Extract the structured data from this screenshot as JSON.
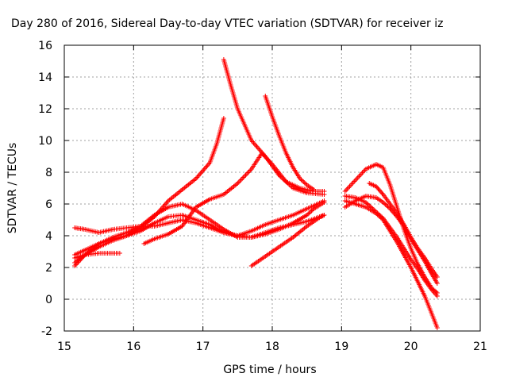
{
  "chart_data": {
    "type": "scatter",
    "title": "Day 280 of 2016, Sidereal Day-to-day VTEC variation (SDTVAR) for receiver iz",
    "xlabel": "GPS time / hours",
    "ylabel": "SDTVAR / TECUs",
    "xlim": [
      15,
      21
    ],
    "ylim": [
      -2,
      16
    ],
    "xticks": [
      15,
      16,
      17,
      18,
      19,
      20,
      21
    ],
    "yticks": [
      -2,
      0,
      2,
      4,
      6,
      8,
      10,
      12,
      14,
      16
    ],
    "grid": true,
    "marker": "+",
    "color": "#ff0000",
    "series": [
      {
        "x": [
          15.15,
          15.3,
          15.5,
          15.7,
          15.9,
          16.1,
          16.3,
          16.5,
          16.7,
          16.9,
          17.1,
          17.3,
          17.5,
          17.7,
          17.9,
          18.1,
          18.3,
          18.5,
          18.75
        ],
        "y": [
          4.5,
          4.4,
          4.2,
          4.4,
          4.5,
          4.6,
          4.6,
          4.8,
          5.0,
          4.8,
          4.5,
          4.2,
          4.0,
          4.3,
          4.7,
          5.0,
          5.3,
          5.7,
          6.2
        ]
      },
      {
        "x": [
          15.15,
          15.3,
          15.5,
          15.7,
          15.9,
          16.1,
          16.3,
          16.5,
          16.7,
          16.9,
          17.1,
          17.3,
          17.5,
          17.7,
          17.9,
          18.1,
          18.3,
          18.5,
          18.75
        ],
        "y": [
          2.3,
          2.8,
          3.5,
          3.8,
          4.0,
          4.3,
          4.8,
          5.2,
          5.3,
          5.0,
          4.7,
          4.2,
          4.0,
          3.9,
          4.2,
          4.5,
          4.7,
          4.9,
          5.3
        ]
      },
      {
        "x": [
          15.15,
          15.3,
          15.5,
          15.7,
          15.8
        ],
        "y": [
          2.6,
          2.8,
          2.9,
          2.9,
          2.9
        ]
      },
      {
        "x": [
          15.15,
          15.3,
          15.5,
          15.7,
          15.9,
          16.1,
          16.3,
          16.5,
          16.7,
          16.9,
          17.1,
          17.2,
          17.3
        ],
        "y": [
          2.1,
          2.8,
          3.3,
          3.7,
          4.0,
          4.5,
          5.2,
          6.2,
          6.9,
          7.6,
          8.6,
          9.8,
          11.4
        ]
      },
      {
        "x": [
          15.15,
          15.3,
          15.5,
          15.7,
          15.9,
          16.1,
          16.3,
          16.5,
          16.7,
          16.9,
          17.1,
          17.3,
          17.5,
          17.7,
          17.9,
          18.1,
          18.3,
          18.5,
          18.6,
          18.75
        ],
        "y": [
          2.8,
          3.1,
          3.5,
          3.9,
          4.2,
          4.6,
          5.3,
          5.8,
          6.0,
          5.6,
          5.0,
          4.4,
          3.9,
          3.9,
          4.1,
          4.4,
          4.8,
          5.3,
          5.7,
          6.1
        ]
      },
      {
        "x": [
          16.15,
          16.3,
          16.5,
          16.7,
          16.9,
          17.1,
          17.3,
          17.5,
          17.7,
          17.85,
          18.0,
          18.2,
          18.4,
          18.6,
          18.75
        ],
        "y": [
          3.5,
          3.8,
          4.1,
          4.6,
          5.8,
          6.3,
          6.6,
          7.3,
          8.2,
          9.2,
          8.5,
          7.4,
          7.0,
          6.8,
          6.8
        ]
      },
      {
        "x": [
          17.3,
          17.4,
          17.5,
          17.6,
          17.7,
          17.9,
          18.1,
          18.3,
          18.5,
          18.75
        ],
        "y": [
          15.1,
          13.5,
          12.0,
          11.0,
          10.0,
          9.0,
          7.8,
          7.0,
          6.7,
          6.6
        ]
      },
      {
        "x": [
          17.9,
          18.0,
          18.1,
          18.2,
          18.3,
          18.4,
          18.5,
          18.6
        ],
        "y": [
          12.8,
          11.5,
          10.3,
          9.2,
          8.3,
          7.6,
          7.2,
          6.9
        ]
      },
      {
        "x": [
          17.7,
          17.9,
          18.1,
          18.3,
          18.5,
          18.7,
          18.75
        ],
        "y": [
          2.1,
          2.7,
          3.3,
          3.9,
          4.6,
          5.2,
          5.3
        ]
      },
      {
        "x": [
          19.05,
          19.2,
          19.35,
          19.5,
          19.6,
          19.7,
          19.8,
          19.9,
          20.0,
          20.1,
          20.2,
          20.3,
          20.38
        ],
        "y": [
          6.8,
          7.5,
          8.2,
          8.5,
          8.3,
          7.2,
          5.8,
          4.4,
          3.2,
          2.2,
          1.4,
          0.7,
          0.4
        ]
      },
      {
        "x": [
          19.05,
          19.2,
          19.35,
          19.5,
          19.6,
          19.7,
          19.8,
          19.9,
          20.0,
          20.1,
          20.2,
          20.3,
          20.38
        ],
        "y": [
          6.2,
          6.0,
          5.8,
          5.4,
          5.0,
          4.3,
          3.6,
          2.8,
          2.0,
          1.1,
          0.2,
          -0.9,
          -1.8
        ]
      },
      {
        "x": [
          19.05,
          19.2,
          19.35,
          19.5,
          19.6,
          19.7,
          19.8,
          19.9,
          20.0,
          20.1,
          20.2,
          20.3,
          20.38
        ],
        "y": [
          5.8,
          6.2,
          6.5,
          6.4,
          6.1,
          5.7,
          5.2,
          4.6,
          3.8,
          3.1,
          2.4,
          1.6,
          1.0
        ]
      },
      {
        "x": [
          19.05,
          19.2,
          19.35,
          19.5,
          19.6,
          19.7,
          19.8,
          19.9,
          20.0,
          20.1,
          20.2,
          20.3,
          20.38
        ],
        "y": [
          6.5,
          6.4,
          6.1,
          5.5,
          5.1,
          4.5,
          3.9,
          3.2,
          2.5,
          1.9,
          1.2,
          0.6,
          0.2
        ]
      },
      {
        "x": [
          19.4,
          19.5,
          19.6,
          19.7,
          19.8,
          19.9,
          20.0,
          20.1,
          20.2,
          20.3,
          20.38
        ],
        "y": [
          7.3,
          7.1,
          6.6,
          6.0,
          5.4,
          4.7,
          3.9,
          3.2,
          2.6,
          1.9,
          1.4
        ]
      }
    ]
  }
}
